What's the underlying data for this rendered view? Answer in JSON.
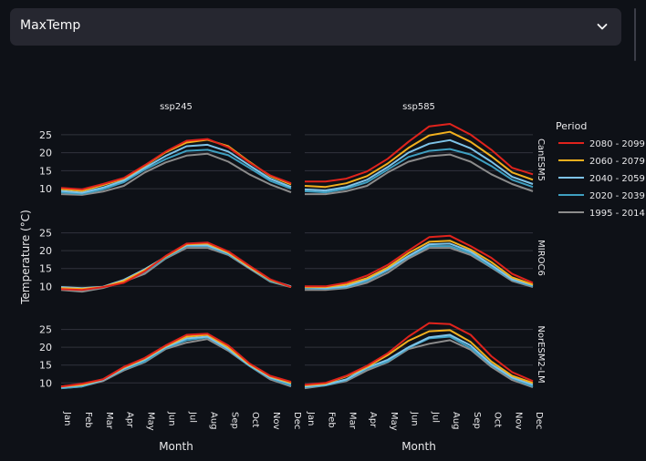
{
  "select": {
    "value": "MaxTemp"
  },
  "chart_data": {
    "type": "line",
    "columns": [
      "ssp245",
      "ssp585"
    ],
    "rows": [
      "CanESM5",
      "MIROC6",
      "NorESM2-LM"
    ],
    "ylabel": "Temperature (°C)",
    "xlabel": "Month",
    "categories": [
      "Jan",
      "Feb",
      "Mar",
      "Apr",
      "May",
      "Jun",
      "Jul",
      "Aug",
      "Sep",
      "Oct",
      "Nov",
      "Dec"
    ],
    "yticks": [
      10,
      15,
      20,
      25
    ],
    "ylim": [
      7,
      29
    ],
    "legend": {
      "title": "Period",
      "placement": "right",
      "entries": [
        "2080 - 2099",
        "2060 - 2079",
        "2040 - 2059",
        "2020 - 2039",
        "1995 - 2014"
      ]
    },
    "colors": {
      "2080 - 2099": "#e0231c",
      "2060 - 2079": "#f2b01e",
      "2040 - 2059": "#7ec3e8",
      "2020 - 2039": "#3f9fc0",
      "1995 - 2014": "#8c8c8c",
      "grid": "#31333d"
    },
    "panels": [
      {
        "row": "CanESM5",
        "col": "ssp245",
        "series": [
          {
            "name": "2080 - 2099",
            "values": [
              10.2,
              9.8,
              11.3,
              13.0,
              16.5,
              20.3,
              23.3,
              23.8,
              21.5,
              17.3,
              13.7,
              11.5
            ]
          },
          {
            "name": "2060 - 2079",
            "values": [
              9.9,
              9.4,
              11.0,
              12.8,
              16.3,
              20.1,
              22.8,
              23.6,
              21.8,
              17.5,
              13.5,
              11.2
            ]
          },
          {
            "name": "2040 - 2059",
            "values": [
              9.4,
              8.9,
              10.3,
              12.3,
              15.8,
              19.1,
              21.8,
              22.2,
              20.3,
              16.5,
              12.8,
              10.5
            ]
          },
          {
            "name": "2020 - 2039",
            "values": [
              9.0,
              8.6,
              9.8,
              11.8,
              15.3,
              18.2,
              20.5,
              20.8,
              19.3,
              15.8,
              12.2,
              10.0
            ]
          },
          {
            "name": "1995 - 2014",
            "values": [
              8.5,
              8.3,
              9.2,
              10.8,
              14.5,
              17.3,
              19.2,
              19.7,
              17.5,
              14.0,
              11.2,
              9.0
            ]
          }
        ]
      },
      {
        "row": "CanESM5",
        "col": "ssp585",
        "series": [
          {
            "name": "2080 - 2099",
            "values": [
              12.0,
              12.0,
              12.8,
              14.8,
              18.3,
              23.0,
              27.3,
              28.0,
              25.0,
              20.8,
              15.8,
              14.0
            ]
          },
          {
            "name": "2060 - 2079",
            "values": [
              10.8,
              10.5,
              11.5,
              13.5,
              17.0,
              21.3,
              24.8,
              25.8,
              23.0,
              19.0,
              14.5,
              12.5
            ]
          },
          {
            "name": "2040 - 2059",
            "values": [
              9.8,
              9.5,
              10.5,
              12.5,
              16.0,
              20.0,
              22.5,
              23.5,
              21.2,
              17.5,
              13.3,
              11.3
            ]
          },
          {
            "name": "2020 - 2039",
            "values": [
              9.3,
              9.0,
              10.0,
              11.8,
              15.3,
              18.8,
              20.5,
              21.0,
              19.5,
              16.3,
              12.5,
              10.5
            ]
          },
          {
            "name": "1995 - 2014",
            "values": [
              8.5,
              8.5,
              9.3,
              10.8,
              14.5,
              17.5,
              19.0,
              19.5,
              17.5,
              14.0,
              11.3,
              9.3
            ]
          }
        ]
      },
      {
        "row": "MIROC6",
        "col": "ssp245",
        "series": [
          {
            "name": "2080 - 2099",
            "values": [
              9.2,
              9.0,
              9.8,
              11.0,
              14.2,
              18.5,
              22.0,
              22.3,
              19.8,
              15.8,
              12.0,
              9.8
            ]
          },
          {
            "name": "2060 - 2079",
            "values": [
              9.5,
              9.3,
              9.8,
              11.5,
              14.5,
              18.3,
              21.8,
              22.0,
              19.5,
              15.5,
              11.8,
              9.8
            ]
          },
          {
            "name": "2040 - 2059",
            "values": [
              9.8,
              9.5,
              9.9,
              11.8,
              14.8,
              18.3,
              21.5,
              21.5,
              19.3,
              15.3,
              11.8,
              10.0
            ]
          },
          {
            "name": "2020 - 2039",
            "values": [
              9.5,
              9.0,
              9.7,
              11.5,
              14.0,
              18.0,
              21.3,
              21.3,
              19.0,
              15.3,
              11.5,
              9.8
            ]
          },
          {
            "name": "1995 - 2014",
            "values": [
              9.0,
              8.5,
              9.5,
              11.3,
              13.5,
              17.8,
              20.8,
              20.8,
              18.8,
              15.0,
              11.3,
              9.8
            ]
          }
        ]
      },
      {
        "row": "MIROC6",
        "col": "ssp585",
        "series": [
          {
            "name": "2080 - 2099",
            "values": [
              10.0,
              10.0,
              11.0,
              13.0,
              16.0,
              20.0,
              23.8,
              24.2,
              21.3,
              18.0,
              13.5,
              11.0
            ]
          },
          {
            "name": "2060 - 2079",
            "values": [
              9.8,
              9.8,
              10.5,
              12.3,
              15.3,
              19.3,
              22.5,
              22.8,
              20.3,
              16.8,
              12.5,
              10.5
            ]
          },
          {
            "name": "2040 - 2059",
            "values": [
              9.8,
              9.5,
              10.0,
              12.0,
              14.8,
              18.5,
              21.8,
              22.0,
              19.8,
              16.0,
              12.0,
              10.3
            ]
          },
          {
            "name": "2020 - 2039",
            "values": [
              9.5,
              9.3,
              9.8,
              11.5,
              14.5,
              18.3,
              21.3,
              21.3,
              19.3,
              15.5,
              11.8,
              10.0
            ]
          },
          {
            "name": "1995 - 2014",
            "values": [
              9.0,
              9.0,
              9.5,
              11.0,
              13.8,
              17.8,
              20.8,
              20.8,
              18.8,
              15.3,
              11.5,
              9.8
            ]
          }
        ]
      },
      {
        "row": "NorESM2-LM",
        "col": "ssp245",
        "series": [
          {
            "name": "2080 - 2099",
            "values": [
              9.0,
              9.8,
              11.0,
              14.5,
              17.0,
              20.5,
              23.5,
              23.8,
              20.5,
              15.5,
              12.0,
              10.3
            ]
          },
          {
            "name": "2060 - 2079",
            "values": [
              9.0,
              9.5,
              11.0,
              14.3,
              16.8,
              20.3,
              23.0,
              23.5,
              20.0,
              15.3,
              11.8,
              10.0
            ]
          },
          {
            "name": "2040 - 2059",
            "values": [
              8.8,
              9.3,
              10.8,
              14.0,
              16.5,
              20.0,
              22.5,
              23.0,
              19.5,
              15.0,
              11.5,
              9.8
            ]
          },
          {
            "name": "2020 - 2039",
            "values": [
              8.5,
              9.0,
              10.8,
              13.8,
              16.0,
              19.8,
              22.0,
              22.8,
              19.3,
              14.8,
              11.3,
              9.3
            ]
          },
          {
            "name": "1995 - 2014",
            "values": [
              8.5,
              9.0,
              10.5,
              13.5,
              15.8,
              19.5,
              21.3,
              22.3,
              19.0,
              14.8,
              11.0,
              9.0
            ]
          }
        ]
      },
      {
        "row": "NorESM2-LM",
        "col": "ssp585",
        "series": [
          {
            "name": "2080 - 2099",
            "values": [
              9.5,
              10.0,
              12.0,
              14.8,
              18.3,
              23.0,
              26.8,
              26.5,
              23.5,
              17.5,
              13.0,
              10.5
            ]
          },
          {
            "name": "2060 - 2079",
            "values": [
              9.3,
              9.8,
              11.8,
              14.5,
              17.8,
              21.8,
              24.5,
              24.8,
              21.5,
              16.0,
              12.0,
              10.0
            ]
          },
          {
            "name": "2040 - 2059",
            "values": [
              9.0,
              9.5,
              11.0,
              14.3,
              16.5,
              20.0,
              22.8,
              23.5,
              20.5,
              15.3,
              11.5,
              9.5
            ]
          },
          {
            "name": "2020 - 2039",
            "values": [
              8.8,
              9.3,
              10.8,
              14.0,
              16.0,
              19.8,
              22.5,
              23.0,
              19.8,
              15.0,
              11.3,
              9.0
            ]
          },
          {
            "name": "1995 - 2014",
            "values": [
              8.5,
              9.3,
              10.5,
              13.5,
              15.8,
              19.5,
              21.0,
              22.0,
              19.3,
              14.5,
              10.8,
              8.8
            ]
          }
        ]
      }
    ]
  }
}
